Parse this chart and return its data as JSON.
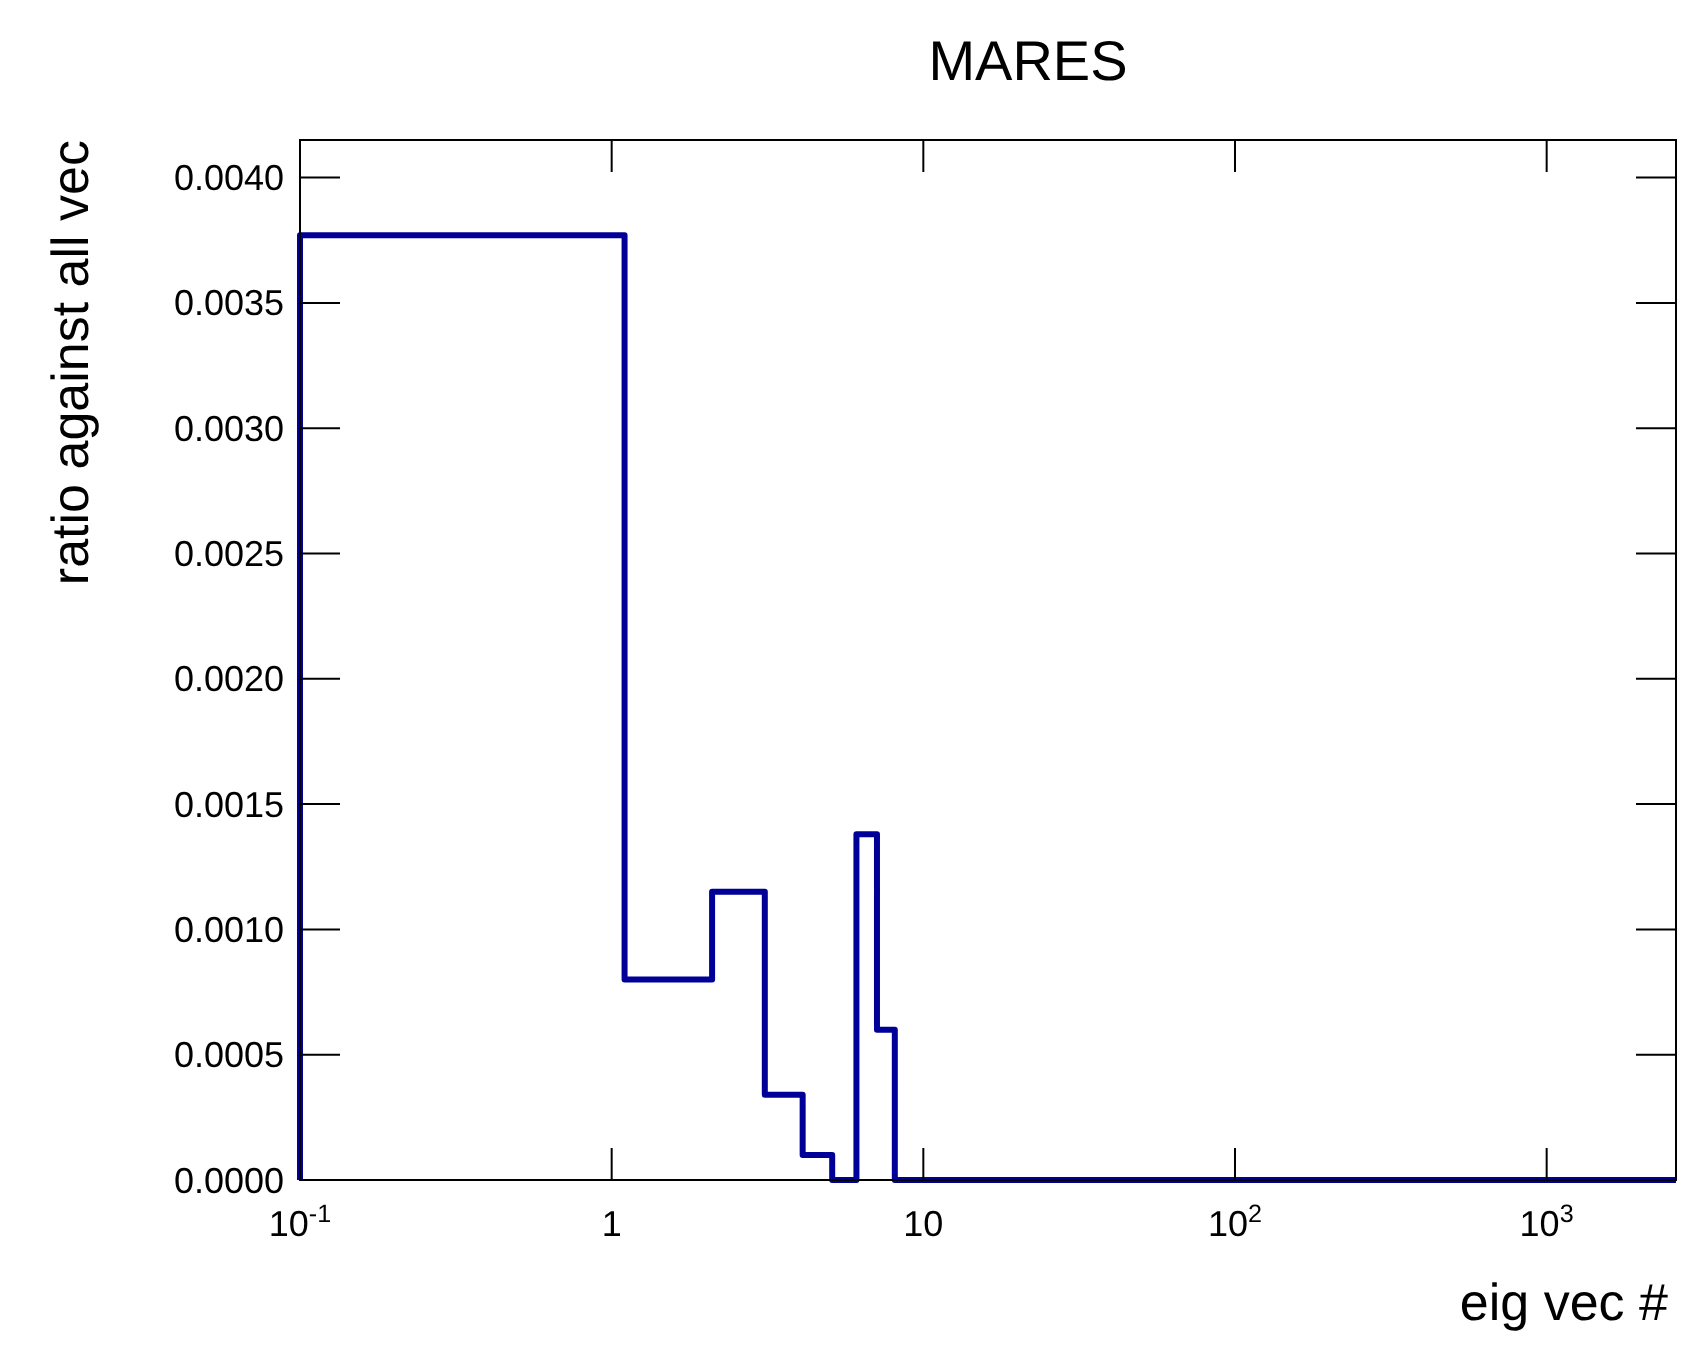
{
  "chart_data": {
    "type": "histogram",
    "title": "MARES",
    "xlabel": "eig vec #",
    "ylabel": "ratio against all vec",
    "bins": [
      0.1,
      1.1,
      2.1,
      3.1,
      4.1,
      5.1,
      6.1,
      7.1,
      8.1,
      2600
    ],
    "values": [
      0.00377,
      0.0008,
      0.00115,
      0.00034,
      0.0001,
      0,
      0.00138,
      0.0006,
      0
    ],
    "color": "#000099",
    "log": "x",
    "xlim": [
      0.1,
      2600
    ],
    "ylim": [
      0,
      0.00415
    ],
    "xticks": [
      {
        "value": 0.1,
        "label": "10$^{-1}$"
      },
      1,
      10,
      {
        "value": 100,
        "label": "10$^{2}$"
      },
      {
        "value": 1000,
        "label": "10$^{3}$"
      }
    ],
    "yticks": [
      {
        "value": 0,
        "label": "0.0000"
      },
      {
        "value": 0.0005,
        "label": "0.0005"
      },
      {
        "value": 0.001,
        "label": "0.0010"
      },
      {
        "value": 0.0015,
        "label": "0.0015"
      },
      {
        "value": 0.002,
        "label": "0.0020"
      },
      {
        "value": 0.0025,
        "label": "0.0025"
      },
      {
        "value": 0.003,
        "label": "0.0030"
      },
      {
        "value": 0.0035,
        "label": "0.0035"
      },
      {
        "value": 0.004,
        "label": "0.0040"
      }
    ],
    "grid": false
  }
}
